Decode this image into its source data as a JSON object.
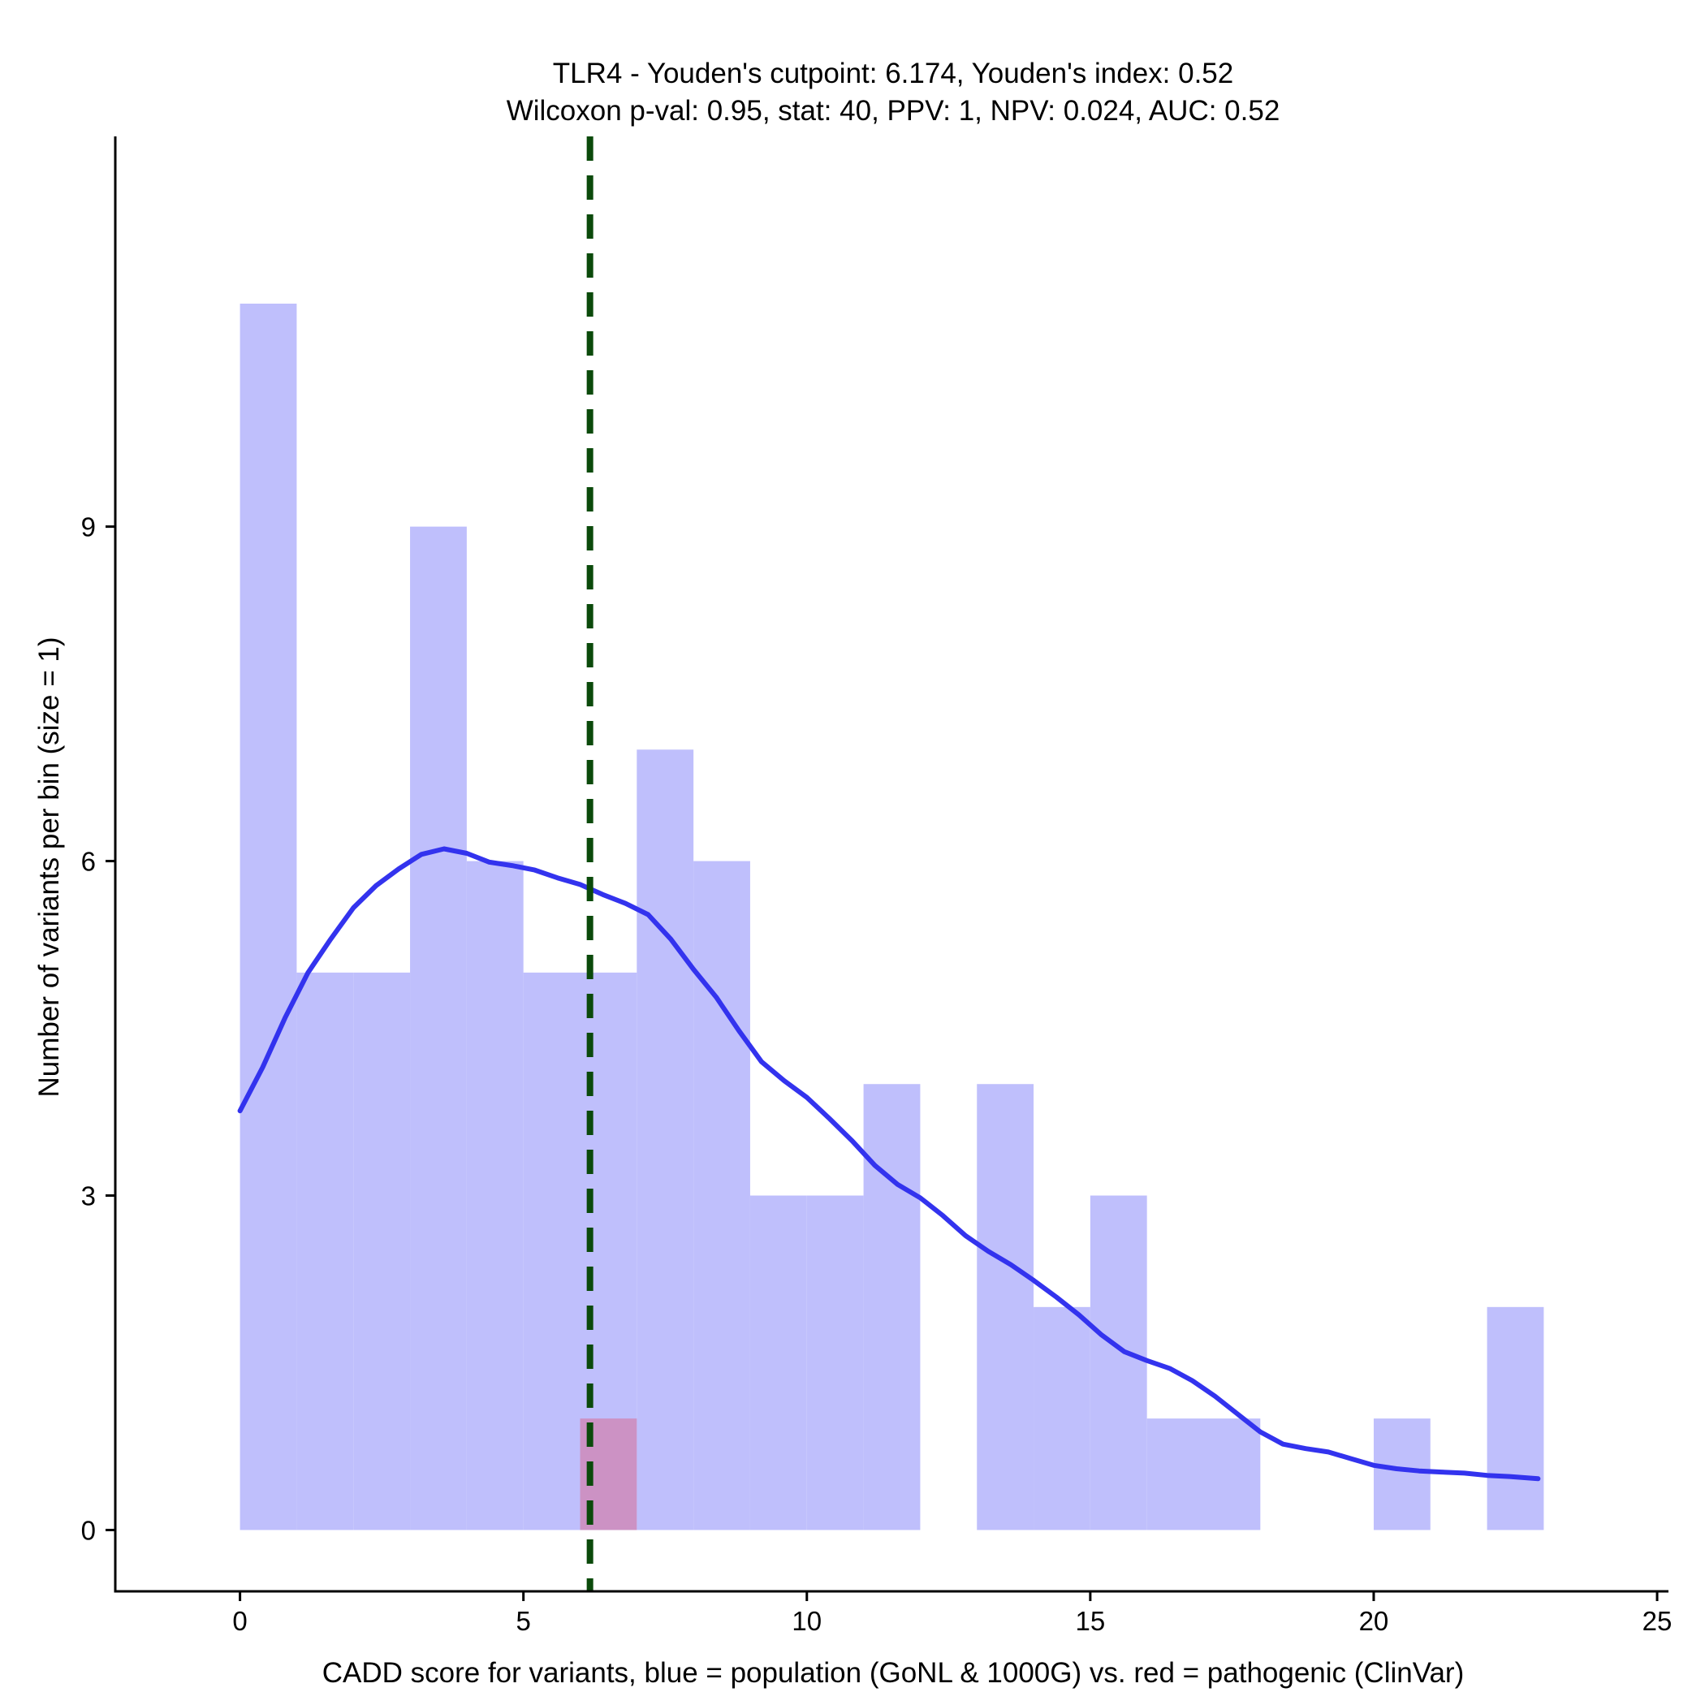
{
  "chart_data": {
    "type": "bar",
    "title_lines": [
      "TLR4 - Youden's cutpoint: 6.174, Youden's index: 0.52",
      "Wilcoxon p-val: 0.95, stat: 40, PPV: 1, NPV: 0.024, AUC: 0.52"
    ],
    "xlabel": "CADD score for variants, blue = population (GoNL & 1000G) vs. red = pathogenic (ClinVar)",
    "ylabel": "Number of variants per bin (size = 1)",
    "xlim": [
      -2.2,
      25.2
    ],
    "ylim": [
      -0.55,
      12.5
    ],
    "x_ticks": [
      0,
      5,
      10,
      15,
      20,
      25
    ],
    "y_ticks": [
      0,
      3,
      6,
      9
    ],
    "bin_width": 1,
    "series": [
      {
        "name": "population (GoNL & 1000G)",
        "color": "#bfbffc",
        "bins": [
          {
            "x": 0,
            "y": 11
          },
          {
            "x": 1,
            "y": 5
          },
          {
            "x": 2,
            "y": 5
          },
          {
            "x": 3,
            "y": 9
          },
          {
            "x": 4,
            "y": 6
          },
          {
            "x": 5,
            "y": 5
          },
          {
            "x": 6,
            "y": 5
          },
          {
            "x": 7,
            "y": 7
          },
          {
            "x": 8,
            "y": 6
          },
          {
            "x": 9,
            "y": 3
          },
          {
            "x": 10,
            "y": 3
          },
          {
            "x": 11,
            "y": 4
          },
          {
            "x": 12,
            "y": 0
          },
          {
            "x": 13,
            "y": 4
          },
          {
            "x": 14,
            "y": 2
          },
          {
            "x": 15,
            "y": 3
          },
          {
            "x": 16,
            "y": 1
          },
          {
            "x": 17,
            "y": 1
          },
          {
            "x": 18,
            "y": 0
          },
          {
            "x": 19,
            "y": 0
          },
          {
            "x": 20,
            "y": 1
          },
          {
            "x": 21,
            "y": 0
          },
          {
            "x": 22,
            "y": 2
          }
        ]
      },
      {
        "name": "pathogenic (ClinVar)",
        "color": "#cc92c4",
        "bins": [
          {
            "x": 6,
            "y": 1
          }
        ]
      }
    ],
    "density_curve": {
      "color": "#3333ee",
      "points": [
        [
          0.0,
          3.76
        ],
        [
          0.4,
          4.15
        ],
        [
          0.8,
          4.6
        ],
        [
          1.2,
          5.0
        ],
        [
          1.6,
          5.3
        ],
        [
          2.0,
          5.58
        ],
        [
          2.4,
          5.78
        ],
        [
          2.8,
          5.93
        ],
        [
          3.2,
          6.06
        ],
        [
          3.6,
          6.11
        ],
        [
          4.0,
          6.07
        ],
        [
          4.4,
          5.99
        ],
        [
          4.8,
          5.96
        ],
        [
          5.2,
          5.92
        ],
        [
          5.6,
          5.85
        ],
        [
          6.0,
          5.79
        ],
        [
          6.4,
          5.7
        ],
        [
          6.8,
          5.62
        ],
        [
          7.2,
          5.52
        ],
        [
          7.6,
          5.3
        ],
        [
          8.0,
          5.03
        ],
        [
          8.4,
          4.78
        ],
        [
          8.8,
          4.48
        ],
        [
          9.2,
          4.2
        ],
        [
          9.6,
          4.03
        ],
        [
          10.0,
          3.88
        ],
        [
          10.4,
          3.69
        ],
        [
          10.8,
          3.49
        ],
        [
          11.2,
          3.27
        ],
        [
          11.6,
          3.1
        ],
        [
          12.0,
          2.98
        ],
        [
          12.4,
          2.82
        ],
        [
          12.8,
          2.64
        ],
        [
          13.2,
          2.5
        ],
        [
          13.6,
          2.38
        ],
        [
          14.0,
          2.24
        ],
        [
          14.4,
          2.09
        ],
        [
          14.8,
          1.93
        ],
        [
          15.2,
          1.75
        ],
        [
          15.6,
          1.6
        ],
        [
          16.0,
          1.52
        ],
        [
          16.4,
          1.45
        ],
        [
          16.8,
          1.34
        ],
        [
          17.2,
          1.2
        ],
        [
          17.6,
          1.04
        ],
        [
          18.0,
          0.88
        ],
        [
          18.4,
          0.77
        ],
        [
          18.8,
          0.73
        ],
        [
          19.2,
          0.7
        ],
        [
          19.6,
          0.64
        ],
        [
          20.0,
          0.58
        ],
        [
          20.4,
          0.55
        ],
        [
          20.8,
          0.53
        ],
        [
          21.2,
          0.52
        ],
        [
          21.6,
          0.51
        ],
        [
          22.0,
          0.49
        ],
        [
          22.4,
          0.48
        ],
        [
          22.9,
          0.46
        ]
      ]
    },
    "cutpoint_line": {
      "x": 6.174,
      "color": "#0b4a0b"
    },
    "grid": false,
    "legend": "none"
  }
}
